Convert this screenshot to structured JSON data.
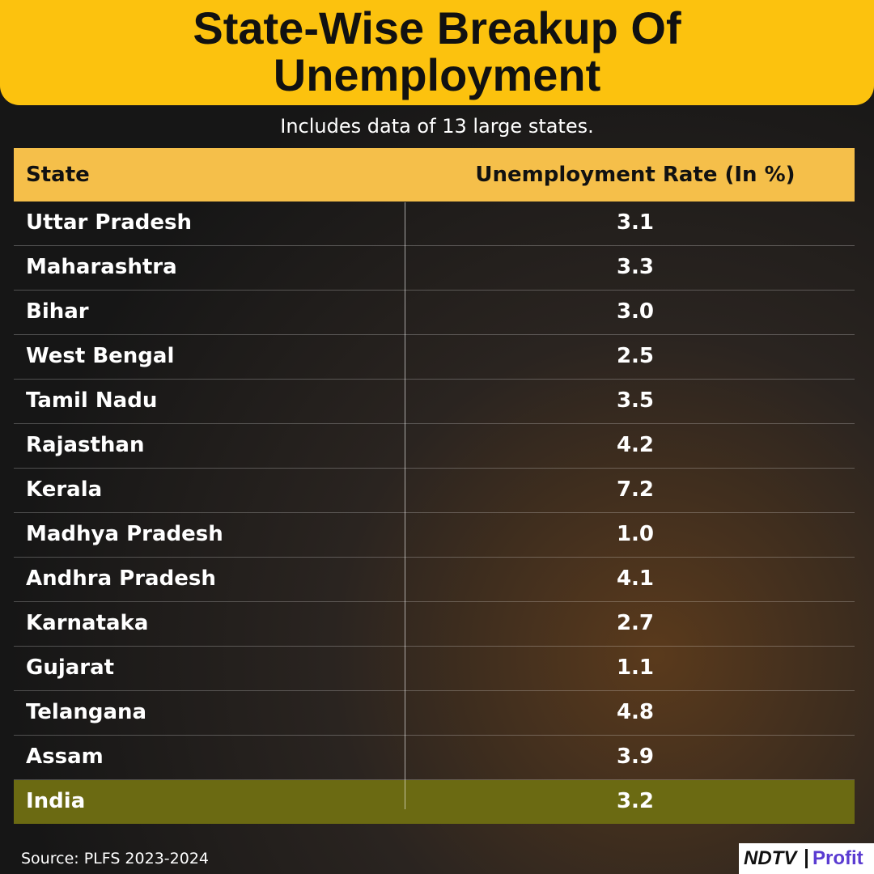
{
  "header": {
    "title": "State-Wise Breakup Of Unemployment",
    "subtitle": "Includes data of 13 large states."
  },
  "table": {
    "columns": [
      "State",
      "Unemployment Rate (In %)"
    ],
    "rows": [
      [
        "Uttar Pradesh",
        "3.1"
      ],
      [
        "Maharashtra",
        "3.3"
      ],
      [
        "Bihar",
        "3.0"
      ],
      [
        "West Bengal",
        "2.5"
      ],
      [
        "Tamil Nadu",
        "3.5"
      ],
      [
        "Rajasthan",
        "4.2"
      ],
      [
        "Kerala",
        "7.2"
      ],
      [
        "Madhya Pradesh",
        "1.0"
      ],
      [
        "Andhra Pradesh",
        "4.1"
      ],
      [
        "Karnataka",
        "2.7"
      ],
      [
        "Gujarat",
        "1.1"
      ],
      [
        "Telangana",
        "4.8"
      ],
      [
        "Assam",
        "3.9"
      ]
    ],
    "total": [
      "India",
      "3.2"
    ]
  },
  "footer": {
    "source": "Source: PLFS 2023-2024",
    "logo": [
      "NDTV",
      "Profit"
    ]
  }
}
